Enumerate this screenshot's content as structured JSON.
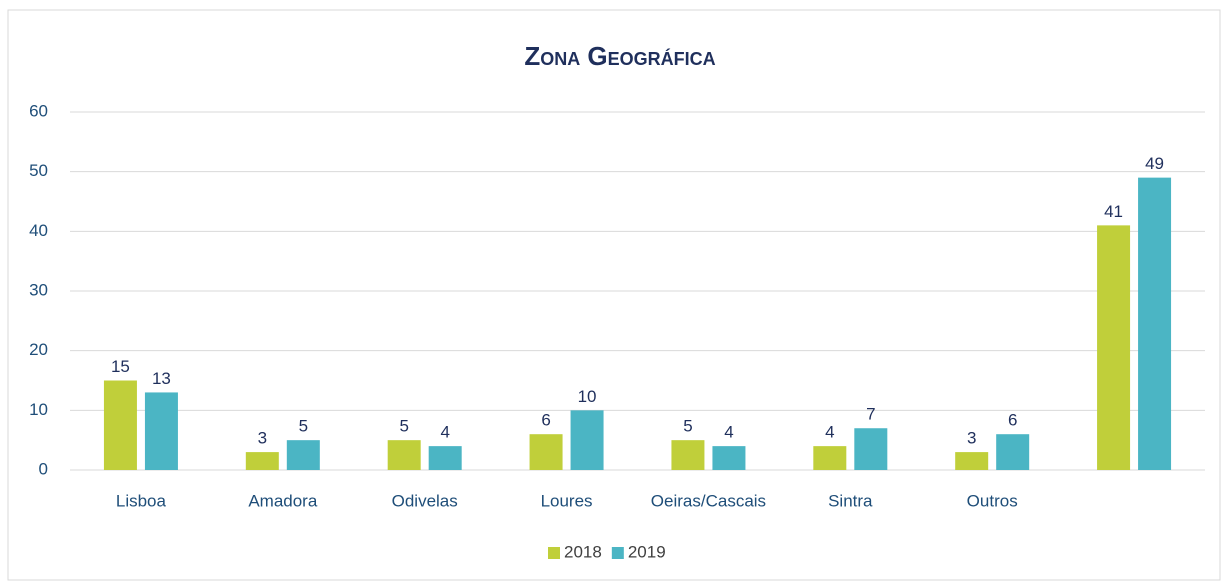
{
  "chart_data": {
    "type": "bar",
    "title": "Zona Geográfica",
    "categories": [
      "Lisboa",
      "Amadora",
      "Odivelas",
      "Loures",
      "Oeiras/Cascais",
      "Sintra",
      "Outros",
      null
    ],
    "series": [
      {
        "name": "2018",
        "color": "#c0cf3a",
        "values": [
          15,
          3,
          5,
          6,
          5,
          4,
          3,
          41
        ]
      },
      {
        "name": "2019",
        "color": "#4bb5c4",
        "values": [
          13,
          5,
          4,
          10,
          4,
          7,
          6,
          49
        ]
      }
    ],
    "ylim": [
      0,
      60
    ],
    "yticks": [
      0,
      10,
      20,
      30,
      40,
      50,
      60
    ],
    "grid": true,
    "legend": "bottom"
  }
}
